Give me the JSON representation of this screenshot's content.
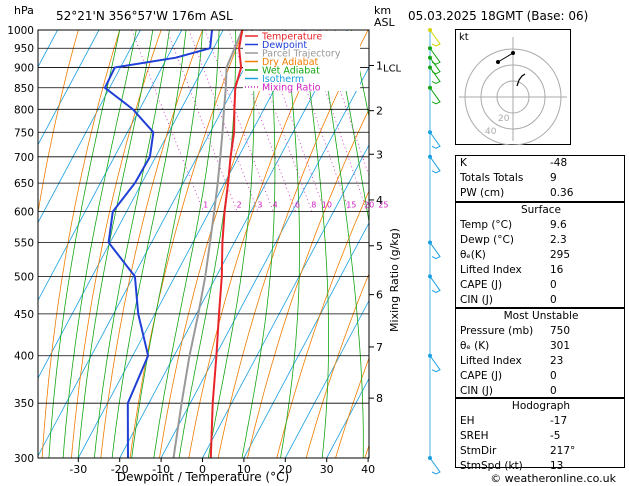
{
  "header": {
    "pressure_unit": "hPa",
    "location": "52°21'N  356°57'W  176m  ASL",
    "km_label": "km",
    "asl_label": "ASL",
    "datetime": "05.03.2025  18GMT  (Base: 06)"
  },
  "footer": {
    "copyright": "© weatheronline.co.uk"
  },
  "legend": [
    {
      "label": "Temperature",
      "color": "#e8242a"
    },
    {
      "label": "Dewpoint",
      "color": "#1f3fd6"
    },
    {
      "label": "Parcel Trajectory",
      "color": "#999999"
    },
    {
      "label": "Dry Adiabat",
      "color": "#f07c00"
    },
    {
      "label": "Wet Adiabat",
      "color": "#14a614"
    },
    {
      "label": "Isotherm",
      "color": "#1aa0e0"
    },
    {
      "label": "Mixing Ratio",
      "color": "#d020c0"
    }
  ],
  "chart_data": {
    "type": "skew-t",
    "xlabel": "Dewpoint / Temperature (°C)",
    "ylabel_right": "Mixing Ratio (g/kg)",
    "pressure_levels": [
      300,
      350,
      400,
      450,
      500,
      550,
      600,
      650,
      700,
      750,
      800,
      850,
      900,
      950,
      1000
    ],
    "temp_ticks": [
      -30,
      -20,
      -10,
      0,
      10,
      20,
      30,
      40
    ],
    "xlim": [
      -40,
      40
    ],
    "ylim": [
      1000,
      300
    ],
    "log_pressure": true,
    "km_ticks": [
      {
        "label": "8",
        "p": 355
      },
      {
        "label": "7",
        "p": 410
      },
      {
        "label": "6",
        "p": 475
      },
      {
        "label": "5",
        "p": 545
      },
      {
        "label": "4",
        "p": 620
      },
      {
        "label": "3",
        "p": 705
      },
      {
        "label": "2",
        "p": 797
      },
      {
        "label": "1",
        "p": 905
      }
    ],
    "lcl": {
      "label": "LCL",
      "p": 900
    },
    "mixing_ratio_labels": [
      "1",
      "2",
      "3",
      "4",
      "6",
      "8",
      "10",
      "15",
      "20",
      "25"
    ],
    "mixing_ratio_values": [
      1,
      2,
      3,
      4,
      6,
      8,
      10,
      15,
      20,
      25
    ],
    "temperature": [
      {
        "p": 1000,
        "t": 9.6
      },
      {
        "p": 950,
        "t": 6.5
      },
      {
        "p": 900,
        "t": 4.5
      },
      {
        "p": 850,
        "t": 0.5
      },
      {
        "p": 800,
        "t": -2.5
      },
      {
        "p": 750,
        "t": -5.5
      },
      {
        "p": 700,
        "t": -9.5
      },
      {
        "p": 650,
        "t": -13.5
      },
      {
        "p": 600,
        "t": -18
      },
      {
        "p": 550,
        "t": -22.5
      },
      {
        "p": 500,
        "t": -27
      },
      {
        "p": 450,
        "t": -32.5
      },
      {
        "p": 400,
        "t": -38.5
      },
      {
        "p": 350,
        "t": -45.5
      },
      {
        "p": 300,
        "t": -53
      }
    ],
    "dewpoint": [
      {
        "p": 1000,
        "t": 2.3
      },
      {
        "p": 950,
        "t": -0.5
      },
      {
        "p": 925,
        "t": -10
      },
      {
        "p": 900,
        "t": -26
      },
      {
        "p": 850,
        "t": -31
      },
      {
        "p": 800,
        "t": -27
      },
      {
        "p": 750,
        "t": -25
      },
      {
        "p": 700,
        "t": -29
      },
      {
        "p": 650,
        "t": -36
      },
      {
        "p": 600,
        "t": -45
      },
      {
        "p": 550,
        "t": -50
      },
      {
        "p": 500,
        "t": -48
      },
      {
        "p": 450,
        "t": -52
      },
      {
        "p": 400,
        "t": -55
      },
      {
        "p": 350,
        "t": -66
      },
      {
        "p": 300,
        "t": -73
      }
    ],
    "parcel": [
      {
        "p": 1000,
        "t": 9.6
      },
      {
        "p": 900,
        "t": 1.0
      },
      {
        "p": 850,
        "t": -1.8
      },
      {
        "p": 800,
        "t": -5
      },
      {
        "p": 750,
        "t": -8.3
      },
      {
        "p": 700,
        "t": -12
      },
      {
        "p": 650,
        "t": -16
      },
      {
        "p": 600,
        "t": -20.5
      },
      {
        "p": 550,
        "t": -25.5
      },
      {
        "p": 500,
        "t": -31
      },
      {
        "p": 450,
        "t": -37.5
      },
      {
        "p": 400,
        "t": -45
      },
      {
        "p": 350,
        "t": -53
      },
      {
        "p": 300,
        "t": -62
      }
    ],
    "wind_barbs_p": [
      300,
      400,
      500,
      550,
      700,
      750,
      850,
      900,
      925,
      950,
      1000
    ]
  },
  "indices": {
    "rows": [
      {
        "label": "K",
        "value": "-48"
      },
      {
        "label": "Totals Totals",
        "value": "9"
      },
      {
        "label": "PW (cm)",
        "value": "0.36"
      }
    ],
    "surface_title": "Surface",
    "surface": [
      {
        "label": "Temp (°C)",
        "value": "9.6"
      },
      {
        "label": "Dewp (°C)",
        "value": "2.3"
      },
      {
        "label": "θₑ(K)",
        "value": "295"
      },
      {
        "label": "Lifted Index",
        "value": "16"
      },
      {
        "label": "CAPE (J)",
        "value": "0"
      },
      {
        "label": "CIN (J)",
        "value": "0"
      }
    ],
    "unstable_title": "Most Unstable",
    "unstable": [
      {
        "label": "Pressure (mb)",
        "value": "750"
      },
      {
        "label": "θₑ (K)",
        "value": "301"
      },
      {
        "label": "Lifted Index",
        "value": "23"
      },
      {
        "label": "CAPE (J)",
        "value": "0"
      },
      {
        "label": "CIN (J)",
        "value": "0"
      }
    ],
    "hodo_title": "Hodograph",
    "hodo": [
      {
        "label": "EH",
        "value": "-17"
      },
      {
        "label": "SREH",
        "value": "-5"
      },
      {
        "label": "StmDir",
        "value": "217°"
      },
      {
        "label": "StmSpd (kt)",
        "value": "13"
      }
    ]
  },
  "hodograph": {
    "unit": "kt",
    "ring_labels": [
      "20",
      "40"
    ]
  }
}
